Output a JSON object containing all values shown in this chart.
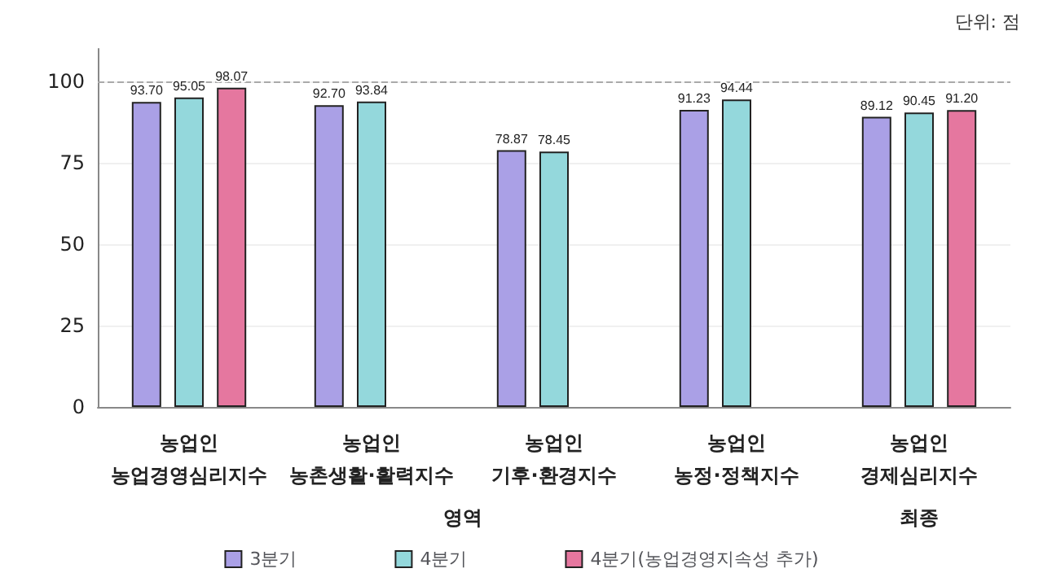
{
  "chart_data": {
    "type": "bar",
    "categories": [
      "농업인\n농업경영심리지수",
      "농업인\n농촌생활·활력지수",
      "농업인\n기후·환경지수",
      "농업인\n농정·정책지수",
      "농업인\n경제심리지수"
    ],
    "series": [
      {
        "name": "3분기",
        "color": "#aaa0e6",
        "values": [
          93.7,
          92.7,
          78.87,
          91.23,
          89.12
        ],
        "value_labels": [
          "93.70",
          "92.70",
          "78.87",
          "91.23",
          "89.12"
        ]
      },
      {
        "name": "4분기",
        "color": "#94d8dc",
        "values": [
          95.05,
          93.84,
          78.45,
          94.44,
          90.45
        ],
        "value_labels": [
          "95.05",
          "93.84",
          "78.45",
          "94.44",
          "90.45"
        ]
      },
      {
        "name": "4분기(농업경영지속성 추가)",
        "color": "#e5779f",
        "values": [
          98.07,
          null,
          null,
          null,
          91.2
        ],
        "value_labels": [
          "98.07",
          null,
          null,
          null,
          "91.20"
        ]
      }
    ],
    "ylim": [
      0,
      110
    ],
    "yticks": [
      0,
      25,
      50,
      75,
      100
    ],
    "grid": "y",
    "legend": "bottom",
    "ref_lines": [
      {
        "axis": "y",
        "value": 100,
        "color": "#aaaaaa",
        "line_style": "dashed"
      }
    ],
    "annotations": [
      "단위: 점",
      "영역",
      "최종"
    ]
  }
}
